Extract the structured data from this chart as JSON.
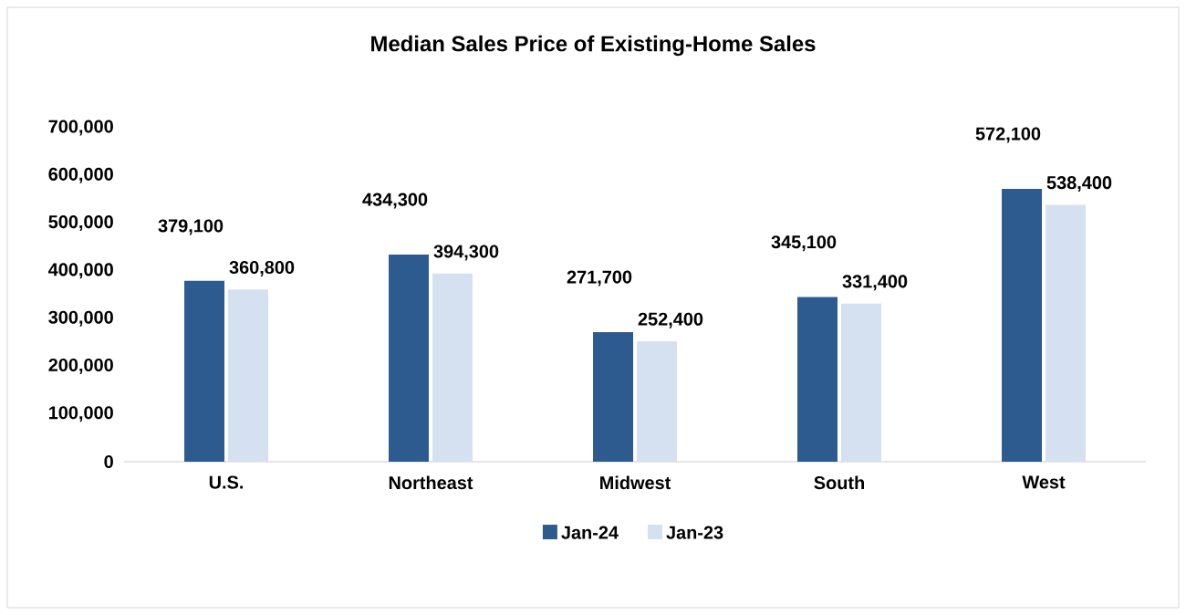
{
  "chart_data": {
    "type": "bar",
    "title": "Median Sales Price of Existing-Home Sales",
    "categories": [
      "U.S.",
      "Northeast",
      "Midwest",
      "South",
      "West"
    ],
    "series": [
      {
        "name": "Jan-24",
        "color": "#2e5b8f",
        "values": [
          379100,
          434300,
          271700,
          345100,
          572100
        ],
        "value_labels": [
          "379,100",
          "434,300",
          "271,700",
          "345,100",
          "572,100"
        ]
      },
      {
        "name": "Jan-23",
        "color": "#d5e1f0",
        "values": [
          360800,
          394300,
          252400,
          331400,
          538400
        ],
        "value_labels": [
          "360,800",
          "394,300",
          "252,400",
          "331,400",
          "538,400"
        ]
      }
    ],
    "ylim": [
      0,
      700000
    ],
    "yticks": [
      0,
      {
        "value": 100000,
        "label": "100,000"
      },
      {
        "value": 200000,
        "label": "200,000"
      },
      {
        "value": 300000,
        "label": "300,000"
      },
      {
        "value": 400000,
        "label": "400,000"
      },
      {
        "value": 500000,
        "label": "500,000"
      },
      {
        "value": 600000,
        "label": "600,000"
      },
      {
        "value": 700000,
        "label": "700,000"
      }
    ],
    "grid": false,
    "legend": "bottom"
  }
}
